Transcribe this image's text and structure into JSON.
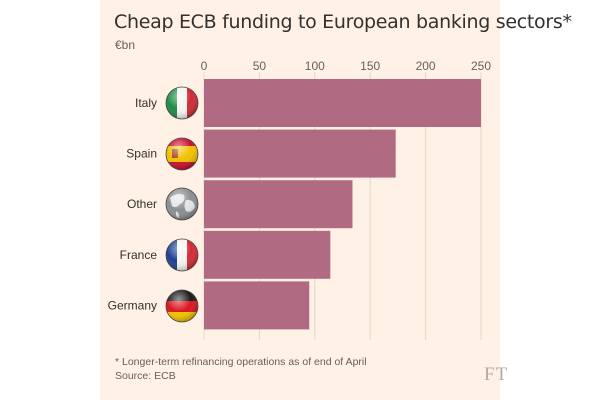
{
  "chart_data": {
    "type": "bar",
    "orientation": "horizontal",
    "title": "Cheap ECB funding to European banking sectors*",
    "unit": "€bn",
    "categories": [
      "Italy",
      "Spain",
      "Other",
      "France",
      "Germany"
    ],
    "values": [
      250,
      173,
      134,
      114,
      95
    ],
    "xlim": [
      0,
      250
    ],
    "xticks": [
      0,
      50,
      100,
      150,
      200,
      250
    ],
    "grid": true,
    "axis_position": "top",
    "bar_color": "#b06a82",
    "icons": [
      "italy-flag-icon",
      "spain-flag-icon",
      "globe-icon",
      "france-flag-icon",
      "germany-flag-icon"
    ],
    "footnote": "* Longer-term refinancing operations as of end of April",
    "source": "Source: ECB"
  },
  "brand": {
    "logo": "FT"
  },
  "colors": {
    "background": "#fff1e5",
    "text": "#33302e",
    "muted": "#66605c",
    "bar": "#b06a82"
  }
}
